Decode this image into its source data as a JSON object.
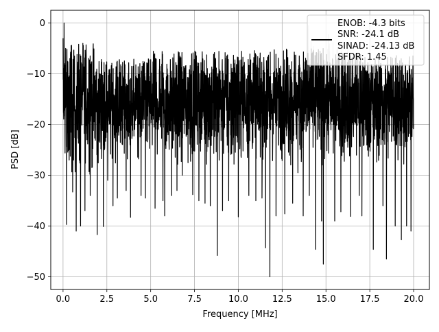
{
  "chart_data": {
    "type": "line",
    "xlabel": "Frequency [MHz]",
    "ylabel": "PSD [dB]",
    "xlim": [
      -0.7,
      20.9
    ],
    "ylim": [
      -52.5,
      2.5
    ],
    "x_ticks": [
      0.0,
      2.5,
      5.0,
      7.5,
      10.0,
      12.5,
      15.0,
      17.5,
      20.0
    ],
    "x_tick_labels": [
      "0.0",
      "2.5",
      "5.0",
      "7.5",
      "10.0",
      "12.5",
      "15.0",
      "17.5",
      "20.0"
    ],
    "y_ticks": [
      0,
      -10,
      -20,
      -30,
      -40,
      -50
    ],
    "y_tick_labels": [
      "0",
      "−10",
      "−20",
      "−30",
      "−40",
      "−50"
    ],
    "grid": true,
    "legend_placement": "top-right",
    "legend_lines": [
      "ENOB: -4.3 bits",
      "SNR: -24.1 dB",
      "SINAD: -24.13 dB",
      "SFDR: 1.45"
    ],
    "series": [
      {
        "color": "#000000",
        "x_range": [
          0.0,
          20.0
        ],
        "typical_range": [
          -27,
          -7
        ],
        "points": [
          [
            0.0,
            -3.0
          ],
          [
            0.03,
            -17.5
          ],
          [
            0.06,
            0.0
          ],
          [
            0.09,
            -8.0
          ],
          [
            0.12,
            -22.0
          ],
          [
            0.15,
            -5.0
          ],
          [
            0.18,
            -14.0
          ],
          [
            0.2,
            -39.7
          ],
          [
            0.35,
            -27.0
          ],
          [
            0.55,
            -33.3
          ],
          [
            0.75,
            -41.0
          ],
          [
            1.0,
            -40.0
          ],
          [
            1.25,
            -37.0
          ],
          [
            1.55,
            -34.0
          ],
          [
            1.95,
            -41.7
          ],
          [
            2.3,
            -40.1
          ],
          [
            2.55,
            -31.0
          ],
          [
            2.85,
            -36.0
          ],
          [
            3.1,
            -34.5
          ],
          [
            3.6,
            -33.0
          ],
          [
            3.85,
            -38.3
          ],
          [
            4.45,
            -34.0
          ],
          [
            4.7,
            -34.5
          ],
          [
            5.25,
            -36.5
          ],
          [
            5.7,
            -35.0
          ],
          [
            5.8,
            -38.0
          ],
          [
            6.2,
            -34.0
          ],
          [
            6.5,
            -33.0
          ],
          [
            6.8,
            -30.0
          ],
          [
            7.4,
            -33.8
          ],
          [
            7.75,
            -35.0
          ],
          [
            8.1,
            -35.5
          ],
          [
            8.4,
            -36.0
          ],
          [
            8.8,
            -45.8
          ],
          [
            9.1,
            -37.0
          ],
          [
            9.45,
            -35.0
          ],
          [
            10.0,
            -38.2
          ],
          [
            10.6,
            -34.0
          ],
          [
            11.0,
            -35.0
          ],
          [
            11.35,
            -34.5
          ],
          [
            11.55,
            -44.3
          ],
          [
            11.8,
            -50.0
          ],
          [
            12.15,
            -38.0
          ],
          [
            12.65,
            -37.6
          ],
          [
            13.1,
            -35.5
          ],
          [
            13.4,
            -29.5
          ],
          [
            13.7,
            -38.0
          ],
          [
            14.05,
            -34.0
          ],
          [
            14.4,
            -44.6
          ],
          [
            14.75,
            -39.0
          ],
          [
            14.85,
            -47.5
          ],
          [
            15.5,
            -39.0
          ],
          [
            15.85,
            -37.2
          ],
          [
            16.4,
            -38.1
          ],
          [
            16.9,
            -34.0
          ],
          [
            17.05,
            -38.0
          ],
          [
            17.7,
            -44.6
          ],
          [
            18.25,
            -36.0
          ],
          [
            18.45,
            -46.5
          ],
          [
            18.95,
            -40.0
          ],
          [
            19.3,
            -42.7
          ],
          [
            19.6,
            -40.0
          ],
          [
            19.85,
            -41.0
          ],
          [
            20.0,
            -20.0
          ]
        ],
        "noise_segments": [
          {
            "x_range": [
              0.0,
              2.0
            ],
            "max": -4,
            "min": -30
          },
          {
            "x_range": [
              2.0,
              5.0
            ],
            "max": -7,
            "min": -28
          },
          {
            "x_range": [
              5.0,
              10.0
            ],
            "max": -5.5,
            "min": -28
          },
          {
            "x_range": [
              10.0,
              15.0
            ],
            "max": -5,
            "min": -28
          },
          {
            "x_range": [
              15.0,
              20.0
            ],
            "max": -6,
            "min": -28
          }
        ],
        "ghost_x_range": [
          13.7,
          17.0
        ]
      }
    ]
  }
}
